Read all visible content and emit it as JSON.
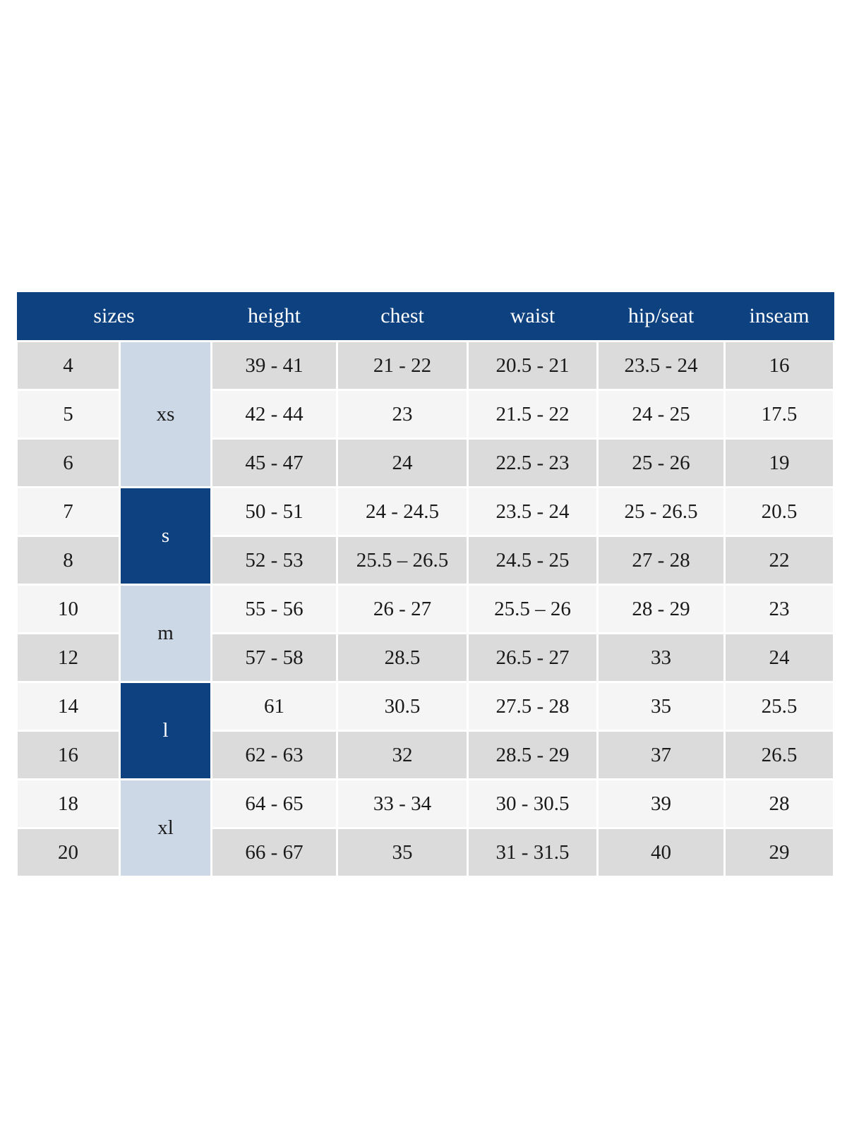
{
  "table": {
    "header": {
      "sizes": "sizes",
      "height": "height",
      "chest": "chest",
      "waist": "waist",
      "hip_seat": "hip/seat",
      "inseam": "inseam"
    },
    "size_groups": [
      {
        "label": "xs",
        "rowspan": 3,
        "variant": "light"
      },
      {
        "label": "s",
        "rowspan": 2,
        "variant": "dark"
      },
      {
        "label": "m",
        "rowspan": 2,
        "variant": "light"
      },
      {
        "label": "l",
        "rowspan": 2,
        "variant": "dark"
      },
      {
        "label": "xl",
        "rowspan": 2,
        "variant": "light"
      }
    ],
    "rows": [
      {
        "size": "4",
        "height": "39 - 41",
        "chest": "21 - 22",
        "waist": "20.5 - 21",
        "hip_seat": "23.5 - 24",
        "inseam": "16"
      },
      {
        "size": "5",
        "height": "42 - 44",
        "chest": "23",
        "waist": "21.5 - 22",
        "hip_seat": "24 - 25",
        "inseam": "17.5"
      },
      {
        "size": "6",
        "height": "45 - 47",
        "chest": "24",
        "waist": "22.5 - 23",
        "hip_seat": "25 - 26",
        "inseam": "19"
      },
      {
        "size": "7",
        "height": "50 - 51",
        "chest": "24 - 24.5",
        "waist": "23.5 - 24",
        "hip_seat": "25 - 26.5",
        "inseam": "20.5"
      },
      {
        "size": "8",
        "height": "52 - 53",
        "chest": "25.5 – 26.5",
        "waist": "24.5 - 25",
        "hip_seat": "27 - 28",
        "inseam": "22"
      },
      {
        "size": "10",
        "height": "55 - 56",
        "chest": "26 - 27",
        "waist": "25.5 – 26",
        "hip_seat": "28 - 29",
        "inseam": "23"
      },
      {
        "size": "12",
        "height": "57 - 58",
        "chest": "28.5",
        "waist": "26.5 - 27",
        "hip_seat": "33",
        "inseam": "24"
      },
      {
        "size": "14",
        "height": "61",
        "chest": "30.5",
        "waist": "27.5 - 28",
        "hip_seat": "35",
        "inseam": "25.5"
      },
      {
        "size": "16",
        "height": "62 - 63",
        "chest": "32",
        "waist": "28.5 - 29",
        "hip_seat": "37",
        "inseam": "26.5"
      },
      {
        "size": "18",
        "height": "64 - 65",
        "chest": "33 - 34",
        "waist": "30 - 30.5",
        "hip_seat": "39",
        "inseam": "28"
      },
      {
        "size": "20",
        "height": "66 - 67",
        "chest": "35",
        "waist": "31 - 31.5",
        "hip_seat": "40",
        "inseam": "29"
      }
    ],
    "colors": {
      "header_bg": "#0d4180",
      "header_text": "#ffffff",
      "group_light_bg": "#ccd8e6",
      "group_dark_bg": "#0d4180",
      "row_odd_bg": "#dbdbdb",
      "row_even_bg": "#f5f5f5",
      "body_text": "#1a1a1a"
    }
  }
}
